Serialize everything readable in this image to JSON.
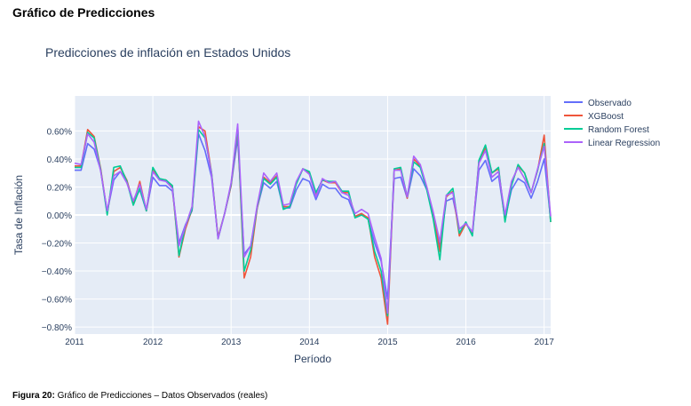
{
  "page": {
    "section_title": "Gráfico de Predicciones",
    "caption_label": "Figura 20:",
    "caption_text": "Gráfico de Predicciones – Datos Observados (reales)"
  },
  "chart_data": {
    "type": "line",
    "title": "Predicciones de inflación en Estados Unidos",
    "xlabel": "Período",
    "ylabel": "Tasa de Inflación",
    "xlim": [
      "2011-01",
      "2017-02"
    ],
    "ylim": [
      -0.0085,
      0.0085
    ],
    "grid": true,
    "legend_position": "right",
    "x_tick_labels": [
      "2011",
      "2012",
      "2013",
      "2014",
      "2015",
      "2016",
      "2017"
    ],
    "y_tick_labels": [
      "0.60%",
      "0.40%",
      "0.20%",
      "0.00%",
      "−0.20%",
      "−0.40%",
      "−0.60%",
      "−0.80%"
    ],
    "y_tick_values": [
      0.006,
      0.004,
      0.002,
      0.0,
      -0.002,
      -0.004,
      -0.006,
      -0.008
    ],
    "x": [
      "2011-01",
      "2011-02",
      "2011-03",
      "2011-04",
      "2011-05",
      "2011-06",
      "2011-07",
      "2011-08",
      "2011-09",
      "2011-10",
      "2011-11",
      "2011-12",
      "2012-01",
      "2012-02",
      "2012-03",
      "2012-04",
      "2012-05",
      "2012-06",
      "2012-07",
      "2012-08",
      "2012-09",
      "2012-10",
      "2012-11",
      "2012-12",
      "2013-01",
      "2013-02",
      "2013-03",
      "2013-04",
      "2013-05",
      "2013-06",
      "2013-07",
      "2013-08",
      "2013-09",
      "2013-10",
      "2013-11",
      "2013-12",
      "2014-01",
      "2014-02",
      "2014-03",
      "2014-04",
      "2014-05",
      "2014-06",
      "2014-07",
      "2014-08",
      "2014-09",
      "2014-10",
      "2014-11",
      "2014-12",
      "2015-01",
      "2015-02",
      "2015-03",
      "2015-04",
      "2015-05",
      "2015-06",
      "2015-07",
      "2015-08",
      "2015-09",
      "2015-10",
      "2015-11",
      "2015-12",
      "2016-01",
      "2016-02",
      "2016-03",
      "2016-04",
      "2016-05",
      "2016-06",
      "2016-07",
      "2016-08",
      "2016-09",
      "2016-10",
      "2016-11",
      "2016-12",
      "2017-01",
      "2017-02"
    ],
    "series": [
      {
        "name": "Observado",
        "color": "#636efa",
        "values": [
          0.0032,
          0.0032,
          0.0051,
          0.0047,
          0.0032,
          0.0002,
          0.0025,
          0.0031,
          0.0025,
          0.0009,
          0.0018,
          0.0003,
          0.0027,
          0.0021,
          0.0021,
          0.0017,
          -0.002,
          -0.0007,
          0.0003,
          0.0058,
          0.0046,
          0.0027,
          -0.0016,
          0.0001,
          0.0021,
          0.0055,
          -0.0028,
          -0.0022,
          0.0005,
          0.0023,
          0.0019,
          0.0024,
          0.0005,
          0.0005,
          0.0018,
          0.0026,
          0.0024,
          0.0011,
          0.0022,
          0.0019,
          0.0019,
          0.0013,
          0.0011,
          -0.0001,
          0.0001,
          -0.0003,
          -0.002,
          -0.0033,
          -0.006,
          0.0026,
          0.0027,
          0.0012,
          0.0033,
          0.0028,
          0.0018,
          0.0,
          -0.0023,
          0.001,
          0.0012,
          -0.001,
          -0.0006,
          -0.0013,
          0.0032,
          0.0039,
          0.0024,
          0.0028,
          -0.0003,
          0.0018,
          0.0026,
          0.0023,
          0.0012,
          0.0024,
          0.004,
          -0.0003
        ]
      },
      {
        "name": "XGBoost",
        "color": "#ef553b",
        "values": [
          0.0035,
          0.0035,
          0.0061,
          0.0056,
          0.0033,
          0.0001,
          0.0031,
          0.0034,
          0.0025,
          0.0008,
          0.0024,
          0.0003,
          0.0032,
          0.0025,
          0.0025,
          0.002,
          -0.003,
          -0.001,
          0.0004,
          0.0063,
          0.006,
          0.003,
          -0.0016,
          0.0001,
          0.0021,
          0.0062,
          -0.0045,
          -0.003,
          0.0005,
          0.0027,
          0.0023,
          0.0028,
          0.0006,
          0.0006,
          0.0023,
          0.0033,
          0.003,
          0.0015,
          0.0025,
          0.0023,
          0.0023,
          0.0016,
          0.0016,
          -0.0001,
          0.0001,
          -0.0002,
          -0.003,
          -0.0045,
          -0.0078,
          0.0032,
          0.0033,
          0.0012,
          0.004,
          0.0035,
          0.002,
          0.0,
          -0.0026,
          0.0013,
          0.0017,
          -0.0015,
          -0.0006,
          -0.0013,
          0.0038,
          0.0048,
          0.003,
          0.0033,
          -0.0004,
          0.0022,
          0.0035,
          0.003,
          0.0016,
          0.0032,
          0.0057,
          -0.0005
        ]
      },
      {
        "name": "Random Forest",
        "color": "#00cc96",
        "values": [
          0.0034,
          0.0034,
          0.0059,
          0.0055,
          0.0032,
          0.0,
          0.0034,
          0.0035,
          0.0024,
          0.0007,
          0.0019,
          0.0003,
          0.0034,
          0.0026,
          0.0025,
          0.0021,
          -0.0029,
          -0.0008,
          0.0004,
          0.0061,
          0.0055,
          0.003,
          -0.0017,
          0.0001,
          0.0022,
          0.0063,
          -0.004,
          -0.0025,
          0.0006,
          0.0026,
          0.0022,
          0.0027,
          0.0004,
          0.0006,
          0.0022,
          0.0033,
          0.0031,
          0.0016,
          0.0025,
          0.0024,
          0.0024,
          0.0017,
          0.0017,
          -0.0002,
          0.0,
          -0.0003,
          -0.0026,
          -0.004,
          -0.0072,
          0.0033,
          0.0034,
          0.0013,
          0.0038,
          0.0034,
          0.0018,
          -0.0003,
          -0.0032,
          0.0014,
          0.0019,
          -0.0013,
          -0.0005,
          -0.0015,
          0.0039,
          0.005,
          0.003,
          0.0034,
          -0.0005,
          0.0021,
          0.0036,
          0.003,
          0.0016,
          0.0032,
          0.0051,
          -0.0005
        ]
      },
      {
        "name": "Linear Regression",
        "color": "#ab63fa",
        "values": [
          0.0037,
          0.0036,
          0.0058,
          0.0052,
          0.0031,
          0.0003,
          0.0028,
          0.0031,
          0.0023,
          0.001,
          0.0022,
          0.0004,
          0.0031,
          0.0025,
          0.0024,
          0.0019,
          -0.0022,
          -0.0008,
          0.0006,
          0.0067,
          0.0056,
          0.0029,
          -0.0017,
          0.0001,
          0.0023,
          0.0065,
          -0.003,
          -0.0022,
          0.0007,
          0.003,
          0.0024,
          0.003,
          0.0007,
          0.0008,
          0.0024,
          0.0033,
          0.0029,
          0.0013,
          0.0026,
          0.0023,
          0.0024,
          0.0016,
          0.0014,
          0.0001,
          0.0004,
          0.0001,
          -0.0016,
          -0.0031,
          -0.007,
          0.0032,
          0.0032,
          0.0013,
          0.0042,
          0.0036,
          0.002,
          0.0002,
          -0.0019,
          0.0014,
          0.0016,
          -0.001,
          -0.0006,
          -0.0012,
          0.0037,
          0.0046,
          0.0027,
          0.0031,
          0.0,
          0.0024,
          0.0034,
          0.0026,
          0.0016,
          0.0033,
          0.0049,
          -0.0001
        ]
      }
    ]
  }
}
